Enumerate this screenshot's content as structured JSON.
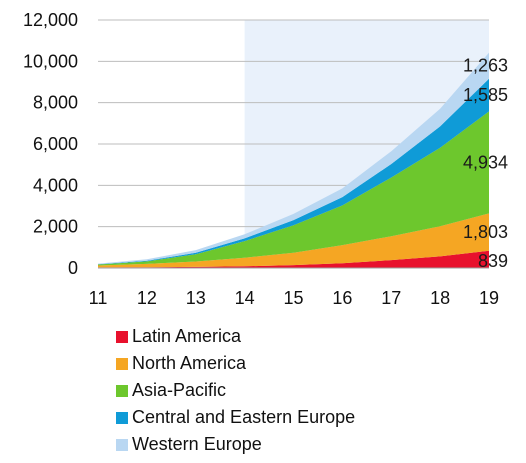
{
  "chart_data": {
    "type": "area",
    "stacked": true,
    "x": [
      "11",
      "12",
      "13",
      "14",
      "15",
      "16",
      "17",
      "18",
      "19"
    ],
    "ylim": [
      0,
      12000
    ],
    "yticks": [
      "0",
      "2,000",
      "4,000",
      "6,000",
      "8,000",
      "10,000",
      "12,000"
    ],
    "ytick_values": [
      0,
      2000,
      4000,
      6000,
      8000,
      10000,
      12000
    ],
    "grid": true,
    "highlight_range": [
      "14",
      "19"
    ],
    "legend_position": "bottom",
    "series": [
      {
        "name": "Latin America",
        "color": "#e8112d",
        "values": [
          30,
          40,
          55,
          80,
          140,
          230,
          380,
          560,
          839
        ]
      },
      {
        "name": "North America",
        "color": "#f5a623",
        "values": [
          90,
          160,
          260,
          420,
          600,
          880,
          1160,
          1460,
          1803
        ]
      },
      {
        "name": "Asia-Pacific",
        "color": "#6dc72d",
        "values": [
          50,
          120,
          350,
          800,
          1330,
          1920,
          2840,
          3800,
          4934
        ]
      },
      {
        "name": "Central and Eastern Europe",
        "color": "#0f9bd7",
        "values": [
          15,
          30,
          70,
          130,
          250,
          400,
          650,
          1030,
          1585
        ]
      },
      {
        "name": "Western Europe",
        "color": "#b9d7f2",
        "values": [
          30,
          70,
          130,
          200,
          300,
          420,
          620,
          860,
          1263
        ]
      }
    ],
    "data_labels": [
      "839",
      "1,803",
      "4,934",
      "1,585",
      "1,263"
    ]
  }
}
